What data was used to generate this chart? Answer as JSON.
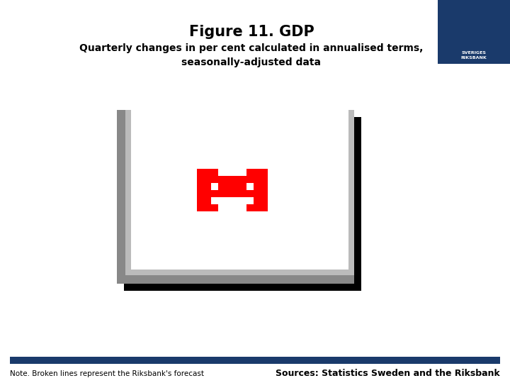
{
  "title": "Figure 11. GDP",
  "subtitle": "Quarterly changes in per cent calculated in annualised terms,\nseasonally-adjusted data",
  "title_fontsize": 15,
  "subtitle_fontsize": 10,
  "background_color": "#ffffff",
  "logo_bg_color": "#1a3a6b",
  "blue_bar_color": "#1a3a6b",
  "note_text": "Note. Broken lines represent the Riksbank's forecast",
  "source_text": "Sources: Statistics Sweden and the Riksbank",
  "note_fontsize": 7.5,
  "source_fontsize": 9.0,
  "gray_border_color": "#888888",
  "gray_border_color2": "#bbbbbb",
  "black_shadow_color": "#000000",
  "white_inner_color": "#ffffff",
  "red_color": "#ff0000"
}
